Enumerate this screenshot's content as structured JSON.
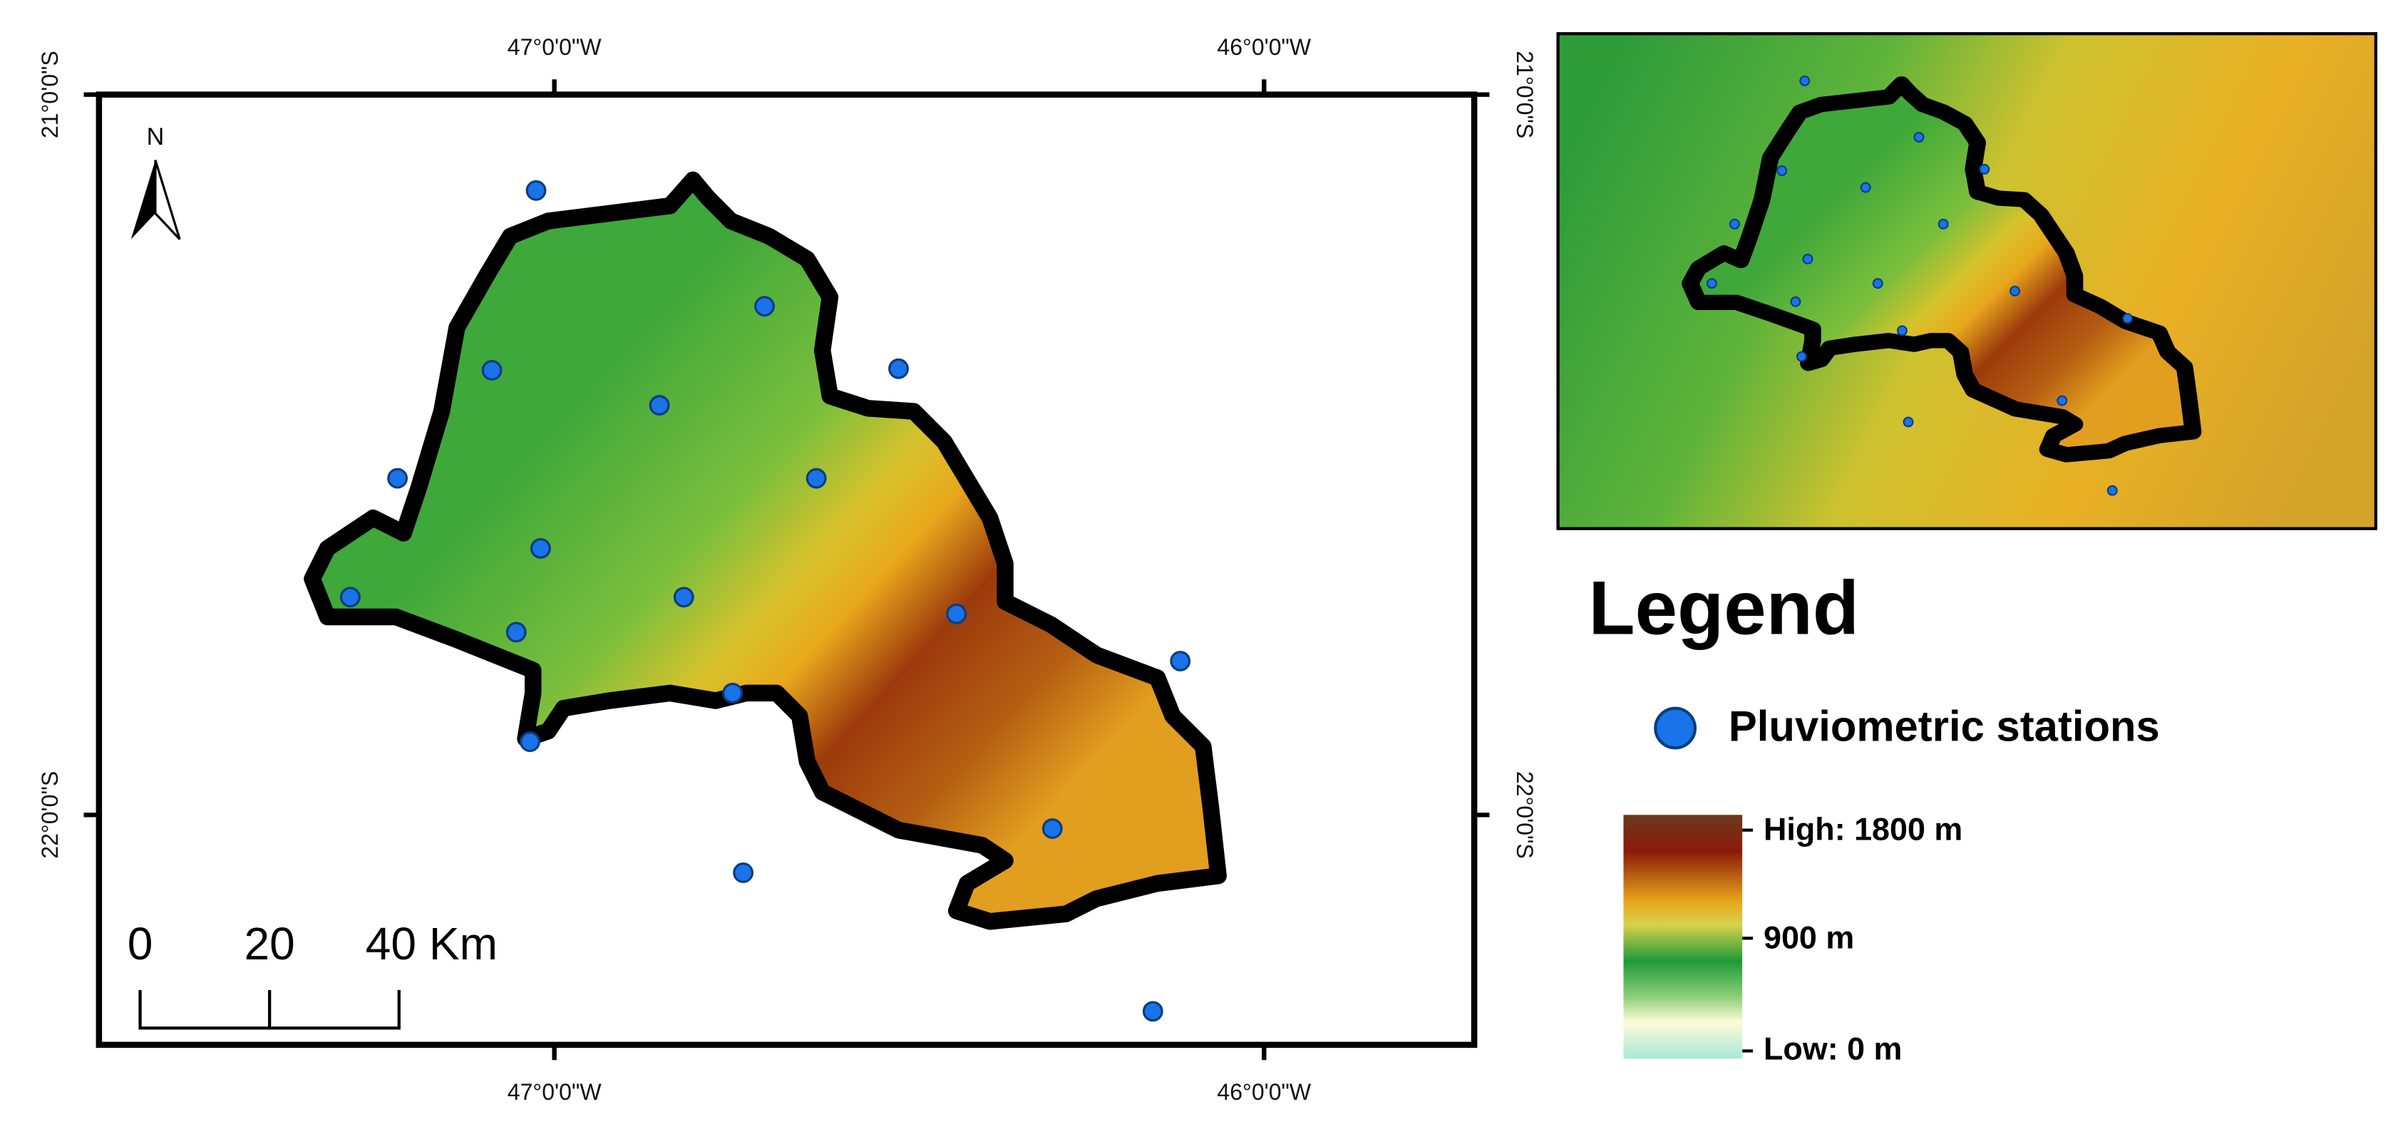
{
  "map": {
    "coord_labels": {
      "lon_west": "47°0'0\"W",
      "lon_east": "46°0'0\"W",
      "lat_north": "21°0'0\"S",
      "lat_south": "22°0'0\"S"
    },
    "north_arrow": "N",
    "scale_bar": [
      "0",
      "20",
      "40 Km"
    ],
    "legend": {
      "title": "Legend",
      "stations": "Pluviometric stations",
      "elevation": {
        "high": "High: 1800 m",
        "mid": "900 m",
        "low": "Low: 0 m"
      }
    }
  }
}
